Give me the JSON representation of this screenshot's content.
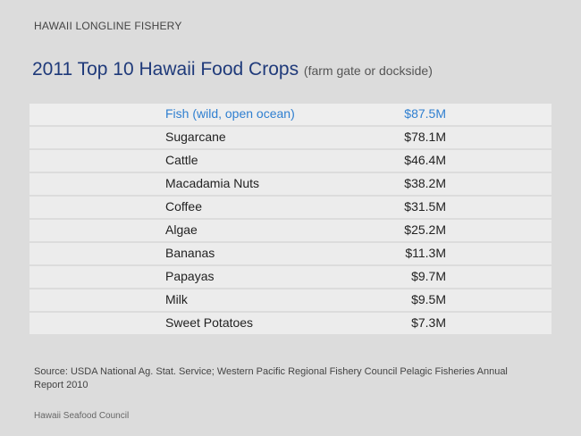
{
  "header": {
    "label": "HAWAII LONGLINE FISHERY"
  },
  "title": {
    "main": "2011 Top 10 Hawaii Food Crops",
    "sub": "(farm gate or dockside)"
  },
  "crops": [
    {
      "name": "Fish (wild, open ocean)",
      "value": "$87.5M"
    },
    {
      "name": "Sugarcane",
      "value": "$78.1M"
    },
    {
      "name": "Cattle",
      "value": "$46.4M"
    },
    {
      "name": "Macadamia Nuts",
      "value": "$38.2M"
    },
    {
      "name": "Coffee",
      "value": "$31.5M"
    },
    {
      "name": "Algae",
      "value": "$25.2M"
    },
    {
      "name": "Bananas",
      "value": "$11.3M"
    },
    {
      "name": "Papayas",
      "value": "$9.7M"
    },
    {
      "name": "Milk",
      "value": "$9.5M"
    },
    {
      "name": "Sweet Potatoes",
      "value": "$7.3M"
    }
  ],
  "source": "Source: USDA National Ag. Stat. Service;  Western Pacific Regional Fishery Council Pelagic Fisheries Annual Report 2010",
  "footer": "Hawaii Seafood Council",
  "colors": {
    "title": "#1f3a7a",
    "highlight": "#2f7fd0",
    "background": "#dcdcdc"
  }
}
